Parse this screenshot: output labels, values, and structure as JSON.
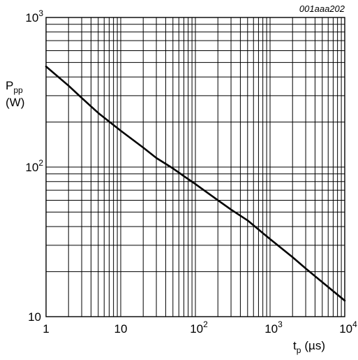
{
  "chart_data": {
    "type": "line",
    "figure_code": "001aaa202",
    "x_scale": "log",
    "y_scale": "log",
    "grid": true,
    "xlim": [
      1,
      10000
    ],
    "ylim": [
      10,
      1000
    ],
    "ylabel": {
      "main": "P",
      "sub": "pp",
      "unit": "(W)"
    },
    "xlabel": {
      "main": "t",
      "sub": "p",
      "unit": "(µs)"
    },
    "x_ticks": [
      {
        "value": 1,
        "base": "1",
        "exp": ""
      },
      {
        "value": 10,
        "base": "10",
        "exp": ""
      },
      {
        "value": 100,
        "base": "10",
        "exp": "2"
      },
      {
        "value": 1000,
        "base": "10",
        "exp": "3"
      },
      {
        "value": 10000,
        "base": "10",
        "exp": "4"
      }
    ],
    "y_ticks": [
      {
        "value": 10,
        "base": "10",
        "exp": ""
      },
      {
        "value": 100,
        "base": "10",
        "exp": "2"
      },
      {
        "value": 1000,
        "base": "10",
        "exp": "3"
      }
    ],
    "series": [
      {
        "x": [
          1,
          2,
          3,
          5,
          10,
          20,
          30,
          50,
          70,
          100,
          200,
          300,
          500,
          1000,
          2000,
          3000,
          5000,
          10000
        ],
        "y": [
          470,
          350,
          290,
          230,
          175,
          135,
          115,
          98,
          87,
          77,
          60,
          52,
          44,
          33,
          25,
          21,
          17,
          12.8
        ]
      }
    ]
  }
}
